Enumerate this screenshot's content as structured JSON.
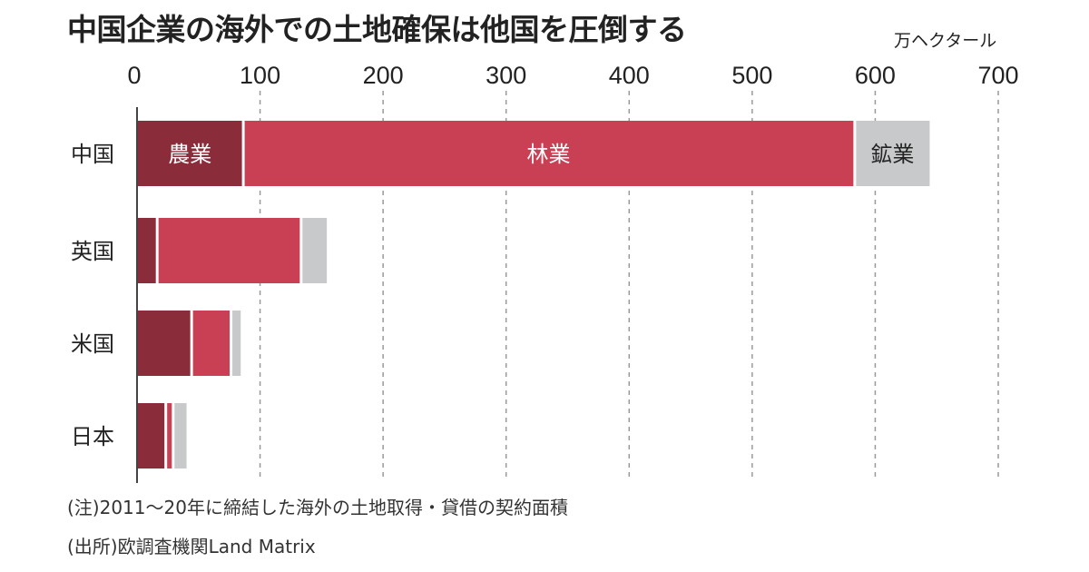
{
  "chart_data": {
    "type": "bar",
    "orientation": "horizontal",
    "stacked": true,
    "title": "中国企業の海外での土地確保は他国を圧倒する",
    "unit": "万ヘクタール",
    "xlim": [
      0,
      700
    ],
    "xticks": [
      0,
      100,
      200,
      300,
      400,
      500,
      600,
      700
    ],
    "categories": [
      "中国",
      "英国",
      "米国",
      "日本"
    ],
    "series": [
      {
        "name": "農業",
        "color": "#8b2c3a",
        "values": [
          86,
          16,
          44,
          23
        ]
      },
      {
        "name": "林業",
        "color": "#c94055",
        "values": [
          497,
          117,
          32,
          6
        ]
      },
      {
        "name": "鉱業",
        "color": "#c8c9cb",
        "values": [
          62,
          22,
          9,
          12
        ]
      }
    ],
    "grid": "dashed vertical",
    "legend": "inline labels on first bar"
  },
  "notes": [
    "(注)2011～20年に締結した海外の土地取得・貸借の契約面積",
    "(出所)欧調査機関Land Matrix"
  ]
}
